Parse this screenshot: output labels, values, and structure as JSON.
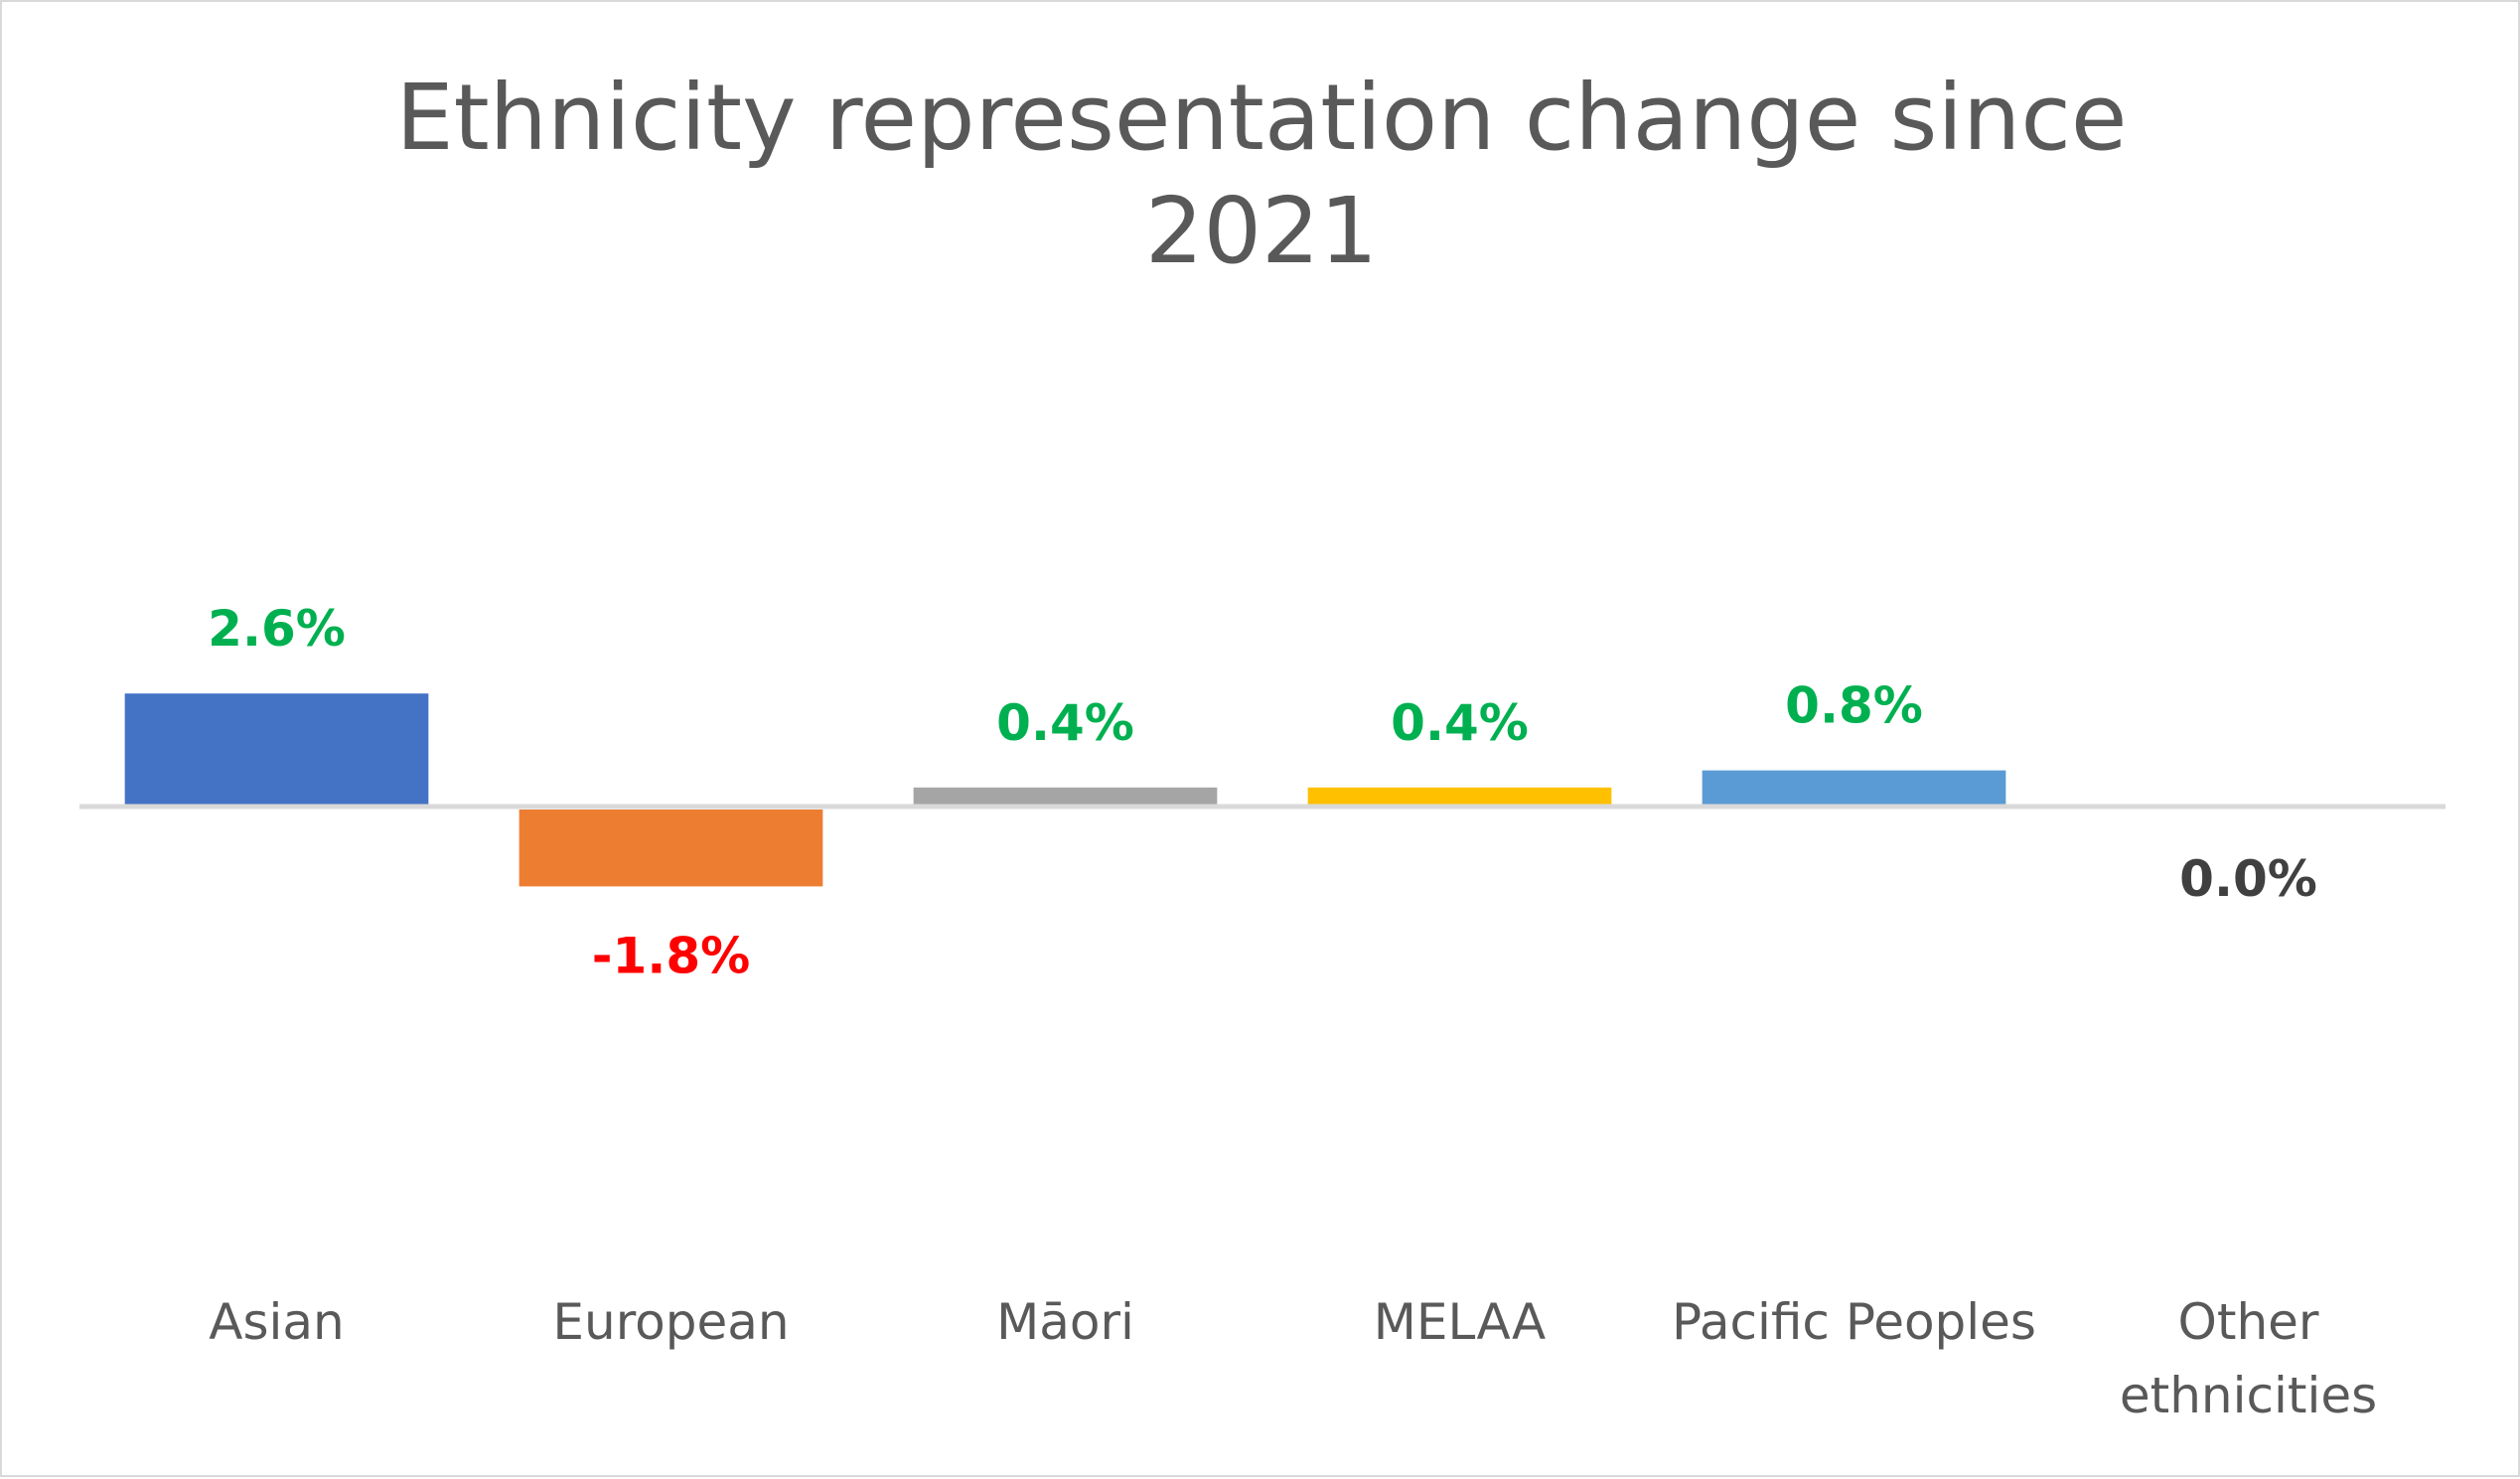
{
  "chart_data": {
    "type": "bar",
    "title": "Ethnicity representation change since 2021",
    "title_lines": [
      "Ethnicity representation change since",
      "2021"
    ],
    "xlabel": "",
    "ylabel": "",
    "categories": [
      "Asian",
      "European",
      "Māori",
      "MELAA",
      "Pacific Peoples",
      "Other ethnicities"
    ],
    "category_lines": [
      [
        "Asian"
      ],
      [
        "European"
      ],
      [
        "Māori"
      ],
      [
        "MELAA"
      ],
      [
        "Pacific Peoples"
      ],
      [
        "Other",
        "ethnicities"
      ]
    ],
    "values": [
      2.6,
      -1.8,
      0.4,
      0.4,
      0.8,
      0.0
    ],
    "data_labels": [
      "2.6%",
      "-1.8%",
      "0.4%",
      "0.4%",
      "0.8%",
      "0.0%"
    ],
    "unit": "%",
    "ylim": [
      -1.8,
      2.6
    ],
    "grid": false,
    "legend": "none",
    "bar_colors": [
      "#4472c4",
      "#ed7d31",
      "#a5a5a5",
      "#ffc000",
      "#5b9bd5",
      "#70ad47"
    ],
    "label_colors": {
      "positive": "#00b050",
      "negative": "#ff0000",
      "zero": "#404040"
    },
    "axis_color": "#d9d9d9"
  }
}
